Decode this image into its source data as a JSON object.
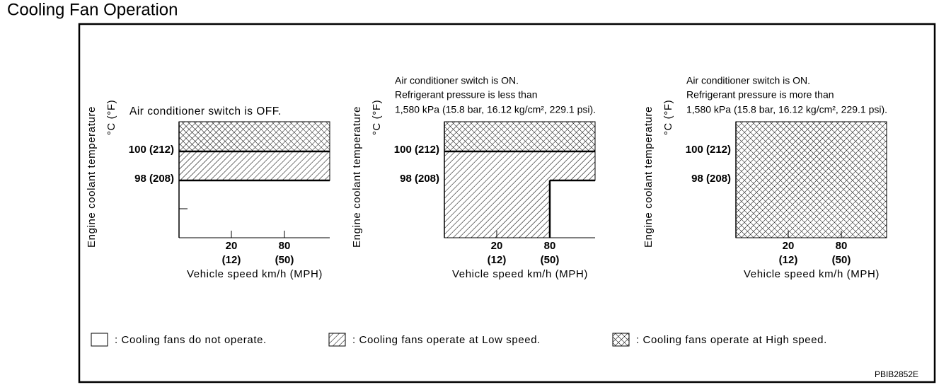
{
  "title": "Cooling Fan Operation",
  "panels": [
    {
      "caption": [
        "Air conditioner switch is OFF."
      ],
      "y_axis_label": "Engine coolant temperature",
      "y_axis_unit": "°C (°F)",
      "y_ticks": [
        "100 (212)",
        "98 (208)"
      ],
      "x_ticks": [
        [
          "20",
          "(12)"
        ],
        [
          "80",
          "(50)"
        ]
      ],
      "x_axis_label": "Vehicle speed km/h (MPH)"
    },
    {
      "caption": [
        "Air conditioner switch is ON.",
        "Refrigerant pressure is less than",
        "1,580 kPa (15.8 bar, 16.12 kg/cm², 229.1 psi)."
      ],
      "y_axis_label": "Engine coolant temperature",
      "y_axis_unit": "°C (°F)",
      "y_ticks": [
        "100 (212)",
        "98 (208)"
      ],
      "x_ticks": [
        [
          "20",
          "(12)"
        ],
        [
          "80",
          "(50)"
        ]
      ],
      "x_axis_label": "Vehicle speed km/h (MPH)"
    },
    {
      "caption": [
        "Air conditioner switch is ON.",
        "Refrigerant pressure is more than",
        "1,580 kPa (15.8 bar, 16.12 kg/cm², 229.1 psi)."
      ],
      "y_axis_label": "Engine coolant temperature",
      "y_axis_unit": "°C (°F)",
      "y_ticks": [
        "100 (212)",
        "98 (208)"
      ],
      "x_ticks": [
        [
          "20",
          "(12)"
        ],
        [
          "80",
          "(50)"
        ]
      ],
      "x_axis_label": "Vehicle speed km/h (MPH)"
    }
  ],
  "legend": [
    ": Cooling fans do not operate.",
    ": Cooling fans operate at Low speed.",
    ": Cooling fans operate at High speed."
  ],
  "code": "PBIB2852E"
}
